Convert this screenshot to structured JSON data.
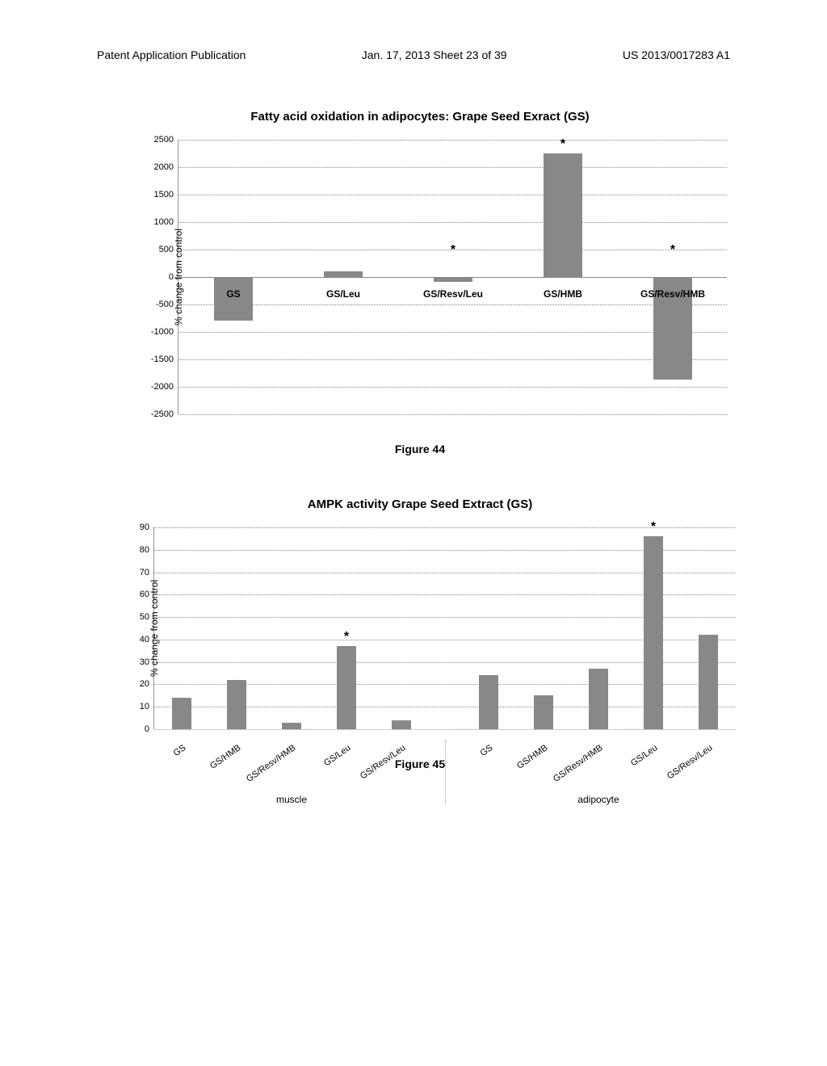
{
  "header": {
    "left": "Patent Application Publication",
    "middle": "Jan. 17, 2013  Sheet 23 of 39",
    "right": "US 2013/0017283 A1"
  },
  "chart1": {
    "type": "bar",
    "title": "Fatty acid oxidation in adipocytes: Grape Seed Exract (GS)",
    "ylabel": "% change from control",
    "ylim": [
      -2500,
      2500
    ],
    "ytick_step": 500,
    "categories": [
      "GS",
      "GS/Leu",
      "GS/Resv/Leu",
      "GS/HMB",
      "GS/Resv/HMB"
    ],
    "values": [
      -790,
      100,
      -95,
      2250,
      -1870
    ],
    "significance": [
      false,
      false,
      true,
      true,
      true
    ],
    "bar_color": "#888888",
    "grid_color": "#888888",
    "background_color": "#ffffff",
    "bar_width": 0.35,
    "label_fontsize": 12,
    "title_fontsize": 15,
    "caption": "Figure 44"
  },
  "chart2": {
    "type": "bar",
    "title": "AMPK activity Grape Seed Extract (GS)",
    "ylabel": "% change from control",
    "ylim": [
      0,
      90
    ],
    "ytick_step": 10,
    "groups": [
      "muscle",
      "adipocyte"
    ],
    "categories_per_group": [
      "GS",
      "GS/HMB",
      "GS/Resv/HMB",
      "GS/Leu",
      "GS/Resv/Leu"
    ],
    "values": [
      14,
      22,
      3,
      37,
      4,
      24,
      15,
      27,
      86,
      42
    ],
    "significance": [
      false,
      false,
      false,
      true,
      false,
      false,
      false,
      false,
      true,
      false
    ],
    "bar_color": "#888888",
    "grid_color": "#888888",
    "background_color": "#ffffff",
    "bar_width": 0.35,
    "label_fontsize": 11,
    "title_fontsize": 15,
    "caption": "Figure 45"
  }
}
